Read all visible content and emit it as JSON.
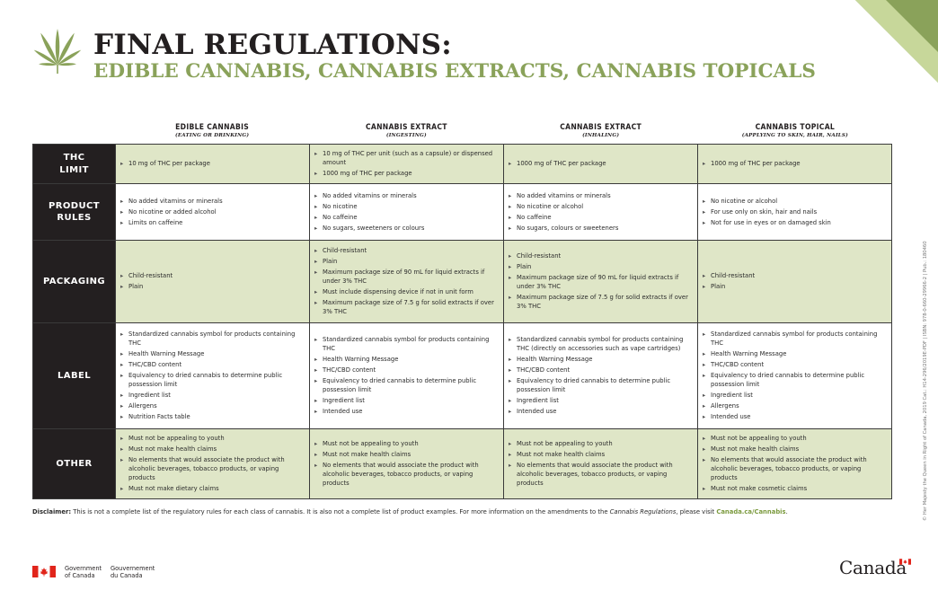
{
  "header": {
    "title": "FINAL REGULATIONS:",
    "subtitle": "EDIBLE CANNABIS, CANNABIS EXTRACTS, CANNABIS TOPICALS"
  },
  "columns": [
    {
      "title": "EDIBLE CANNABIS",
      "sub": "(EATING OR DRINKING)"
    },
    {
      "title": "CANNABIS EXTRACT",
      "sub": "(INGESTING)"
    },
    {
      "title": "CANNABIS EXTRACT",
      "sub": "(INHALING)"
    },
    {
      "title": "CANNABIS TOPICAL",
      "sub": "(APPLYING TO SKIN, HAIR, NAILS)"
    }
  ],
  "rows": [
    {
      "label": "THC LIMIT",
      "cells": [
        [
          "10 mg of THC per package"
        ],
        [
          "10 mg of THC per unit (such as a capsule) or dispensed amount",
          "1000 mg of THC per package"
        ],
        [
          "1000 mg of THC per package"
        ],
        [
          "1000 mg of THC per package"
        ]
      ]
    },
    {
      "label": "PRODUCT RULES",
      "cells": [
        [
          "No added vitamins or minerals",
          "No nicotine or added alcohol",
          "Limits on caffeine"
        ],
        [
          "No added vitamins or minerals",
          "No nicotine",
          "No caffeine",
          "No sugars, sweeteners or colours"
        ],
        [
          "No added vitamins or minerals",
          "No nicotine or alcohol",
          "No caffeine",
          "No sugars, colours or sweeteners"
        ],
        [
          "No nicotine or alcohol",
          "For use only on skin, hair and nails",
          "Not for use in eyes or on damaged skin"
        ]
      ]
    },
    {
      "label": "PACKAGING",
      "cells": [
        [
          "Child-resistant",
          "Plain"
        ],
        [
          "Child-resistant",
          "Plain",
          "Maximum package size of 90 mL for liquid extracts if under 3% THC",
          "Must include dispensing device if not in unit form",
          "Maximum package size of 7.5 g for solid extracts if over 3% THC"
        ],
        [
          "Child-resistant",
          "Plain",
          "Maximum package size of 90 mL for liquid extracts if under 3% THC",
          "Maximum package size of 7.5 g for solid extracts if over 3% THC"
        ],
        [
          "Child-resistant",
          "Plain"
        ]
      ]
    },
    {
      "label": "LABEL",
      "cells": [
        [
          "Standardized cannabis symbol for products containing THC",
          "Health Warning Message",
          "THC/CBD content",
          "Equivalency to dried cannabis to determine public possession limit",
          "Ingredient list",
          "Allergens",
          "Nutrition Facts table"
        ],
        [
          "Standardized cannabis symbol for products containing THC",
          "Health Warning Message",
          "THC/CBD content",
          "Equivalency to dried cannabis to determine public possession limit",
          "Ingredient list",
          "Intended use"
        ],
        [
          "Standardized cannabis symbol for products containing THC (directly on accessories such as vape cartridges)",
          "Health Warning Message",
          "THC/CBD content",
          "Equivalency to dried cannabis to determine public possession limit",
          "Ingredient list",
          "Intended use"
        ],
        [
          "Standardized cannabis symbol for products containing THC",
          "Health Warning Message",
          "THC/CBD content",
          "Equivalency to dried cannabis to determine public possession limit",
          "Ingredient list",
          "Allergens",
          "Intended use"
        ]
      ]
    },
    {
      "label": "OTHER",
      "cells": [
        [
          "Must not be appealing to youth",
          "Must not make health claims",
          "No elements that would associate the product with alcoholic beverages, tobacco products, or vaping products",
          "Must not make dietary claims"
        ],
        [
          "Must not be appealing to youth",
          "Must not make health claims",
          "No elements that would associate the product with alcoholic beverages, tobacco products, or vaping products"
        ],
        [
          "Must not be appealing to youth",
          "Must not make health claims",
          "No elements that would associate the product with alcoholic beverages, tobacco products, or vaping products"
        ],
        [
          "Must not be appealing to youth",
          "Must not make health claims",
          "No elements that would associate the product with alcoholic beverages, tobacco products, or vaping products",
          "Must not make cosmetic claims"
        ]
      ]
    }
  ],
  "disclaimer": {
    "label": "Disclaimer:",
    "text": " This is not a complete list of the regulatory rules for each class of cannabis. It is also not a complete list of product examples. For more information on the amendments to the ",
    "italic": "Cannabis Regulations",
    "text2": ", please visit ",
    "link": "Canada.ca/Cannabis",
    "end": "."
  },
  "side_note": "© Her Majesty the Queen in Right of Canada, 2019   Cat.: H14-296/2019E-PDF   |   ISBN: 978-0-660-29966-2   |   Pub.: 180460",
  "footer": {
    "gov_en_1": "Government",
    "gov_en_2": "of Canada",
    "gov_fr_1": "Gouvernement",
    "gov_fr_2": "du Canada",
    "wordmark": "Canada"
  },
  "colors": {
    "accent_green": "#8aa25a",
    "row_green": "#dfe6c7",
    "row_head": "#231f20",
    "flag_red": "#e1251b"
  }
}
